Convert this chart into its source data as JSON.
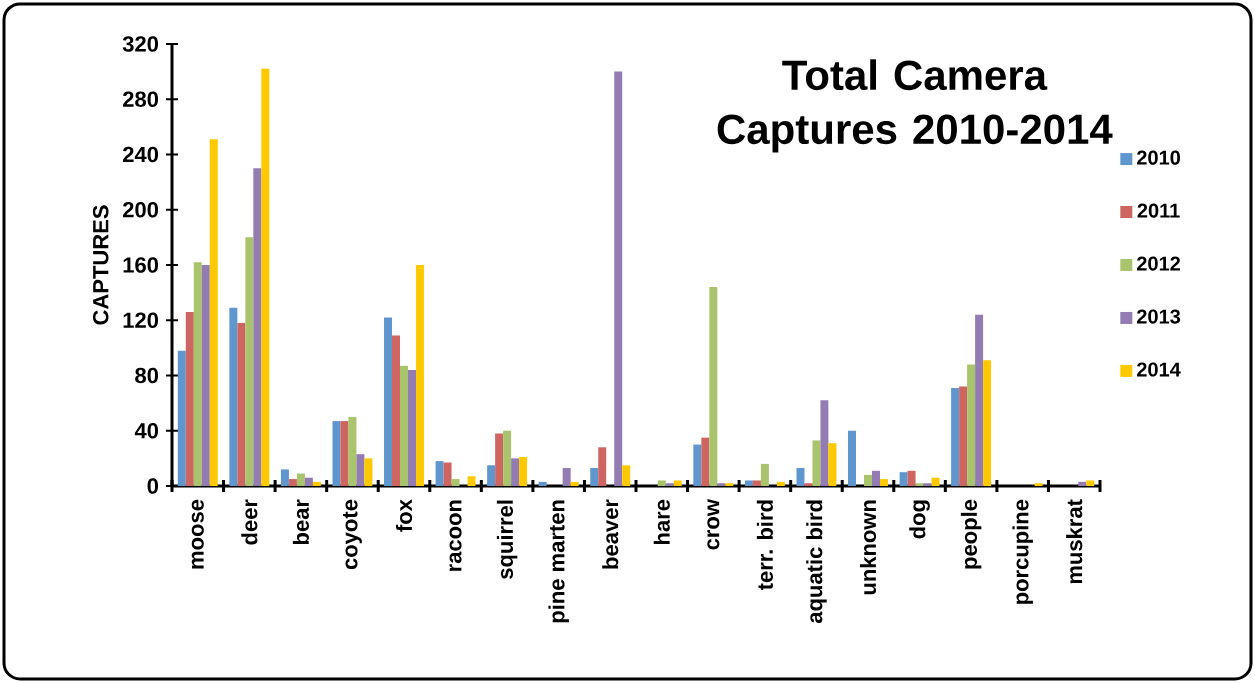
{
  "chart_data": {
    "type": "bar",
    "title": "Total Camera Captures 2010-2014",
    "ylabel": "CAPTURES",
    "categories": [
      "moose",
      "deer",
      "bear",
      "coyote",
      "fox",
      "racoon",
      "squirrel",
      "pine marten",
      "beaver",
      "hare",
      "crow",
      "terr. bird",
      "aquatic bird",
      "unknown",
      "dog",
      "people",
      "porcupine",
      "muskrat"
    ],
    "series": [
      {
        "name": "2010",
        "color": "#5f96cd",
        "values": [
          98,
          129,
          12,
          47,
          122,
          18,
          15,
          3,
          13,
          0,
          30,
          4,
          13,
          40,
          10,
          71,
          0,
          0
        ]
      },
      {
        "name": "2011",
        "color": "#cd6560",
        "values": [
          126,
          118,
          5,
          47,
          109,
          17,
          38,
          0,
          28,
          0,
          35,
          4,
          2,
          0,
          11,
          72,
          0,
          0
        ]
      },
      {
        "name": "2012",
        "color": "#a9c46c",
        "values": [
          162,
          180,
          9,
          50,
          87,
          5,
          40,
          0,
          0,
          4,
          144,
          16,
          33,
          8,
          2,
          88,
          0,
          0
        ]
      },
      {
        "name": "2013",
        "color": "#927cb1",
        "values": [
          160,
          230,
          6,
          23,
          84,
          0,
          20,
          13,
          300,
          2,
          2,
          0,
          62,
          11,
          2,
          124,
          0,
          3
        ]
      },
      {
        "name": "2014",
        "color": "#ffc900",
        "values": [
          251,
          302,
          3,
          20,
          160,
          7,
          21,
          3,
          15,
          4,
          2,
          3,
          31,
          5,
          6,
          91,
          2,
          4
        ]
      }
    ],
    "ylim": [
      0,
      320
    ],
    "yticks": [
      0,
      40,
      80,
      120,
      160,
      200,
      240,
      280,
      320
    ],
    "grid": false,
    "legend": "right"
  }
}
